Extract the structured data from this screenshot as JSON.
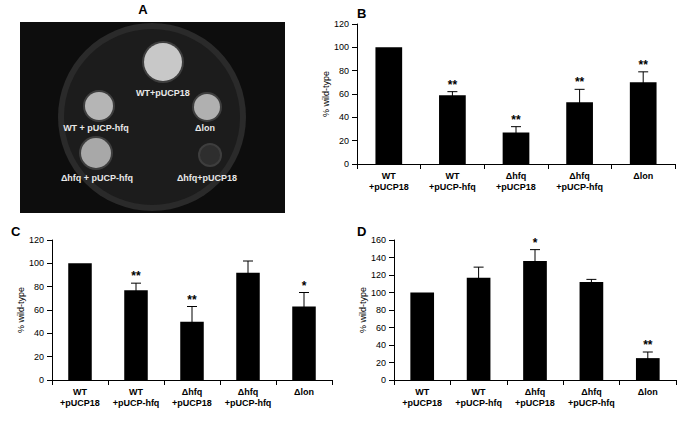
{
  "chart_data": [
    {
      "type": "bar",
      "title": "B",
      "categories": [
        "WT\n+pUCP18",
        "WT\n+pUCP-hfq",
        "Δhfq\n+pUCP18",
        "Δhfq\n+pUCP-hfq",
        "Δlon"
      ],
      "values": [
        100,
        59,
        27,
        53,
        70
      ],
      "errors": [
        null,
        3,
        5,
        11,
        9
      ],
      "annotations": [
        null,
        "**",
        "**",
        "**",
        "**"
      ],
      "ylabel": "% wild-type",
      "ylim": [
        0,
        120
      ],
      "yticks": [
        0,
        20,
        40,
        60,
        80,
        100,
        120
      ],
      "color": "#000000",
      "grid": false
    },
    {
      "type": "bar",
      "title": "C",
      "categories": [
        "WT\n+pUCP18",
        "WT\n+pUCP-hfq",
        "Δhfq\n+pUCP18",
        "Δhfq\n+pUCP-hfq",
        "Δlon"
      ],
      "values": [
        100,
        77,
        50,
        92,
        63
      ],
      "errors": [
        null,
        6,
        13,
        10,
        12
      ],
      "annotations": [
        null,
        "**",
        "**",
        null,
        "*"
      ],
      "ylabel": "% wild-type",
      "ylim": [
        0,
        120
      ],
      "yticks": [
        0,
        20,
        40,
        60,
        80,
        100,
        120
      ],
      "color": "#000000",
      "grid": false
    },
    {
      "type": "bar",
      "title": "D",
      "categories": [
        "WT\n+pUCP18",
        "WT\n+pUCP-hfq",
        "Δhfq\n+pUCP18",
        "Δhfq\n+pUCP-hfq",
        "Δlon"
      ],
      "values": [
        100,
        117,
        136,
        112,
        25
      ],
      "errors": [
        null,
        12,
        13,
        3,
        7
      ],
      "annotations": [
        null,
        null,
        "*",
        null,
        "**"
      ],
      "ylabel": "% wild-type",
      "ylim": [
        0,
        160
      ],
      "yticks": [
        0,
        20,
        40,
        60,
        80,
        100,
        120,
        140,
        160
      ],
      "color": "#000000",
      "grid": false
    }
  ],
  "photo": {
    "title": "A",
    "labels": [
      "WT+pUCP18",
      "WT + pUCP-hfq",
      "Δlon",
      "Δhfq + pUCP-hfq",
      "Δhfq+pUCP18"
    ]
  }
}
